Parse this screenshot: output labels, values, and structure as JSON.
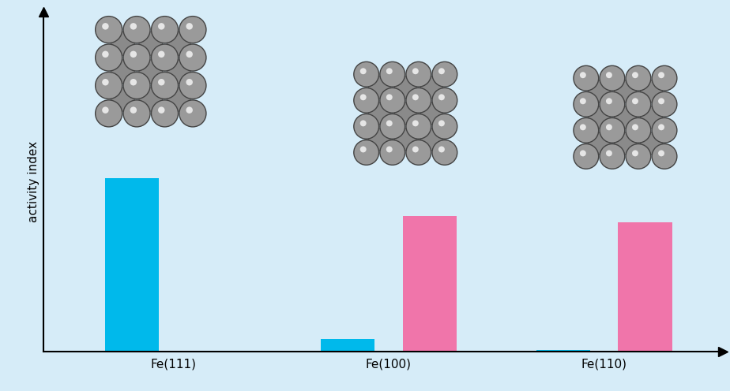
{
  "chart_data": {
    "type": "bar",
    "y_label": "activity index",
    "categories": [
      "Fe(111)",
      "Fe(100)",
      "Fe(110)"
    ],
    "series": [
      {
        "color": "#00b9eb",
        "values": [
          51,
          3.7,
          0.5
        ]
      },
      {
        "color": "#f075aa",
        "values": [
          null,
          40,
          38
        ]
      }
    ],
    "ylim": [
      0,
      100
    ],
    "yticks": [],
    "tick_labels": "x",
    "grid": false
  }
}
